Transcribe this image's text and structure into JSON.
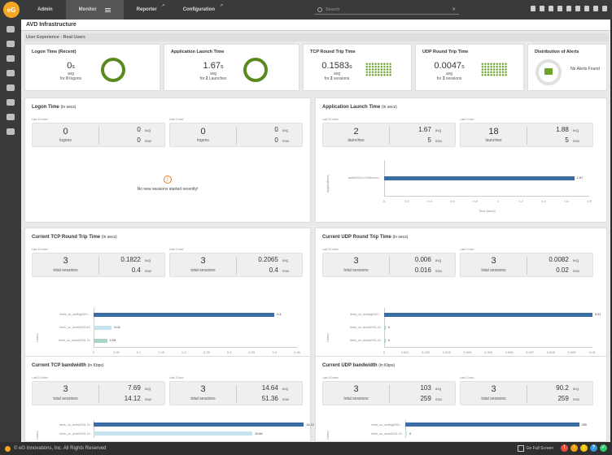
{
  "nav": {
    "logo": "eG",
    "tabs": [
      "Admin",
      "Monitor",
      "Reporter",
      "Configuration"
    ],
    "search_placeholder": "Search"
  },
  "breadcrumb": "AVD Infrastructure",
  "section_title": "User Experience - Real Users",
  "cards": {
    "logon": {
      "title": "Logon Time (Recent)",
      "value": "0",
      "unit": "s",
      "avg": "avg",
      "for_pre": "for ",
      "for_num": "0",
      "for_post": " logons"
    },
    "app": {
      "title": "Application Launch Time",
      "value": "1.67",
      "unit": "s",
      "avg": "avg",
      "for_pre": "for ",
      "for_num": "2",
      "for_post": " Launches"
    },
    "tcp": {
      "title": "TCP Round Trip Time",
      "value": "0.1583",
      "unit": "s",
      "avg": "avg",
      "for_pre": "for ",
      "for_num": "3",
      "for_post": " sessions"
    },
    "udp": {
      "title": "UDP Round Trip Time",
      "value": "0.0047",
      "unit": "s",
      "avg": "avg",
      "for_pre": "for ",
      "for_num": "3",
      "for_post": " sessions"
    },
    "alerts": {
      "title": "Distribution of Alerts",
      "empty": "No Alerts Found"
    }
  },
  "panels": {
    "logon": {
      "title": "Logon Time",
      "unit": "(in secs)",
      "l10": "Last 10 mins",
      "l1h": "Last 1 hour",
      "b1": {
        "n": "0",
        "nl": "logons",
        "avg": "0",
        "max": "0"
      },
      "b2": {
        "n": "0",
        "nl": "logons",
        "avg": "0",
        "max": "0"
      },
      "nodata": "No new sessions started recently!"
    },
    "app": {
      "title": "Application Launch Time",
      "unit": "(in secs)",
      "l10": "Last 10 mins",
      "l1h": "Last 1 hour",
      "b1": {
        "n": "2",
        "nl": "launches",
        "avg": "1.67",
        "max": "5"
      },
      "b2": {
        "n": "18",
        "nl": "launches",
        "avg": "1.88",
        "max": "5"
      },
      "ylabel": "Applications",
      "xlabel": "Time (secs)"
    },
    "tcp": {
      "title": "Current TCP Round Trip Time",
      "unit": "(in secs)",
      "l10": "Last 10 mins",
      "l1h": "Last 1 hour",
      "b1": {
        "n": "3",
        "nl": "total sessions",
        "avg": "0.1822",
        "max": "0.4"
      },
      "b2": {
        "n": "3",
        "nl": "total sessions",
        "avg": "0.2065",
        "max": "0.4"
      },
      "ylabel": "Users",
      "xlabel": "Time (secs)"
    },
    "udp": {
      "title": "Current UDP Round Trip Time",
      "unit": "(in secs)",
      "l10": "Last 10 mins",
      "l1h": "Last 1 hour",
      "b1": {
        "n": "3",
        "nl": "total sessions",
        "avg": "0.006",
        "max": "0.016"
      },
      "b2": {
        "n": "3",
        "nl": "total sessions",
        "avg": "0.0082",
        "max": "0.02"
      },
      "ylabel": "Users"
    },
    "tcpbw": {
      "title": "Current TCP bandwidth",
      "unit": "(in Kbps)",
      "l10": "Last 10 mins",
      "l1h": "Last 1 hour",
      "b1": {
        "n": "3",
        "nl": "total sessions",
        "avg": "7.69",
        "max": "14.12"
      },
      "b2": {
        "n": "3",
        "nl": "total sessions",
        "avg": "14.64",
        "max": "51.36"
      },
      "ylabel": "Users"
    },
    "udpbw": {
      "title": "Current UDP bandwidth",
      "unit": "(in Kbps)",
      "l10": "Last 10 mins",
      "l1h": "Last 1 hour",
      "b1": {
        "n": "3",
        "nl": "total sessions",
        "avg": "103",
        "max": "259"
      },
      "b2": {
        "n": "3",
        "nl": "total sessions",
        "avg": "90.2",
        "max": "259"
      },
      "ylabel": "Users"
    }
  },
  "labels": {
    "avg": "avg",
    "max": "max"
  },
  "footer": {
    "copyright": "© eG Innovations, Inc. All Rights Reserved",
    "fullscreen": "Go Full Screen"
  },
  "colors": {
    "bar": "#3a6ea5",
    "bar_light": "#c6e3ef",
    "bar_green": "#a8d5c2",
    "ok": "#5a8a1d"
  },
  "chart_data": [
    {
      "type": "bar",
      "orientation": "horizontal",
      "categories": [
        "avdsf02201-01\\Microso..."
      ],
      "values": [
        1.67
      ],
      "xlim": [
        0,
        1.8
      ],
      "xticks": [
        "0",
        "0.2",
        "0.4",
        "0.6",
        "0.8",
        "1",
        "1.2",
        "1.4",
        "1.6",
        "1.8"
      ],
      "xlabel": "Time (secs)",
      "ylabel": "Applications"
    },
    {
      "type": "bar",
      "orientation": "horizontal",
      "categories": [
        "freek_on_avdfsg0201...",
        "freek_on_avdsf2201r01",
        "freek_on_avdral2201-01"
      ],
      "values": [
        0.4,
        0.04,
        0.03
      ],
      "xlim": [
        0,
        0.45
      ],
      "xticks": [
        "0",
        "0.05",
        "0.1",
        "0.15",
        "0.2",
        "0.25",
        "0.3",
        "0.35",
        "0.4",
        "0.45"
      ],
      "xlabel": "Time (secs)",
      "ylabel": "Users"
    },
    {
      "type": "bar",
      "orientation": "horizontal",
      "categories": [
        "freek_on_avdfsg0201...",
        "freek_on_avdsf2201-01",
        "freek_on_avdra2201-01"
      ],
      "values": [
        0.01,
        0,
        0
      ],
      "xlim": [
        0,
        0.01
      ],
      "xticks": [
        "0",
        "0.001",
        "0.002",
        "0.003",
        "0.004",
        "0.005",
        "0.006",
        "0.007",
        "0.008",
        "0.009",
        "0.01"
      ],
      "ylabel": "Users"
    },
    {
      "type": "bar",
      "orientation": "horizontal",
      "categories": [
        "freek_on_avdra2201-01",
        "freek_on_avdsf2201-01"
      ],
      "values": [
        14.12,
        10.66
      ],
      "ylabel": "Users"
    },
    {
      "type": "bar",
      "orientation": "horizontal",
      "categories": [
        "freek_on_avdfsg0201...",
        "freek_on_avdsf2201-01"
      ],
      "values": [
        259,
        0
      ],
      "ylabel": "Users"
    }
  ]
}
